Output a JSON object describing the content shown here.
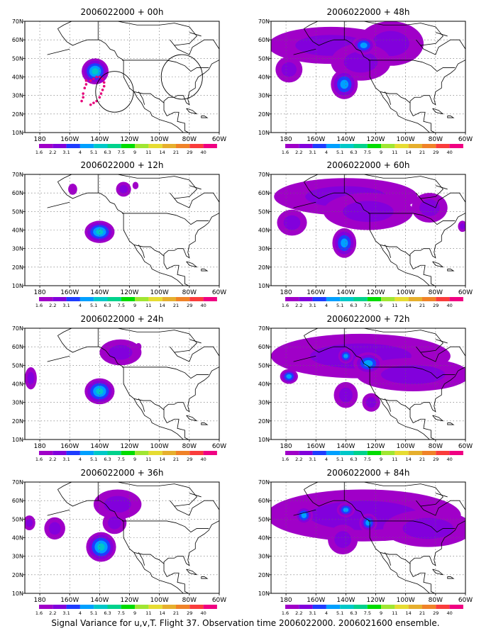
{
  "caption": "Signal Variance for u,v,T. Flight 37. Observation time 2006022000. 2006021600 ensemble.",
  "colors": [
    "#a000c8",
    "#8200dc",
    "#1e3cff",
    "#00a0ff",
    "#00c8c8",
    "#00d28c",
    "#00dc00",
    "#a0e632",
    "#e6dc32",
    "#e6af2d",
    "#f08228",
    "#fa3c3c",
    "#f00082"
  ],
  "chart_data": [
    {
      "type": "heatmap",
      "title": "2006022000 + 00h",
      "xticks": [
        "180",
        "160W",
        "140W",
        "120W",
        "100W",
        "80W",
        "60W"
      ],
      "yticks": [
        "10N",
        "20N",
        "30N",
        "40N",
        "50N",
        "60N",
        "70N"
      ],
      "xlim": [
        -190,
        -60
      ],
      "ylim": [
        10,
        70
      ],
      "legend_levels": [
        "1.6",
        "2.2",
        "3.1",
        "4",
        "5.1",
        "6.3",
        "7.5",
        "9",
        "11",
        "14",
        "21",
        "29",
        "40"
      ],
      "blobs": [
        {
          "lon": -143,
          "lat": 43,
          "rx": 9,
          "ry": 7,
          "level": 4
        }
      ],
      "flight_track": [
        [
          -149,
          38
        ],
        [
          -149,
          36
        ],
        [
          -150,
          34
        ],
        [
          -151,
          31
        ],
        [
          -151,
          29
        ],
        [
          -152,
          27
        ],
        [
          -146,
          25
        ],
        [
          -144,
          26
        ],
        [
          -142,
          27
        ],
        [
          -140,
          29
        ],
        [
          -139,
          31
        ],
        [
          -138,
          33
        ],
        [
          -137,
          35
        ],
        [
          -137,
          37
        ],
        [
          -138,
          39
        ],
        [
          -140,
          40
        ],
        [
          -142,
          40
        ],
        [
          -144,
          39
        ],
        [
          -146,
          38
        ]
      ],
      "circles": [
        {
          "lon": -130,
          "lat": 32,
          "r": 11
        },
        {
          "lon": -85,
          "lat": 40,
          "r": 12
        }
      ]
    },
    {
      "type": "heatmap",
      "title": "2006022000 + 48h",
      "xticks": [
        "180",
        "160W",
        "140W",
        "120W",
        "100W",
        "80W",
        "60W"
      ],
      "yticks": [
        "10N",
        "20N",
        "30N",
        "40N",
        "50N",
        "60N",
        "70N"
      ],
      "xlim": [
        -190,
        -60
      ],
      "ylim": [
        10,
        70
      ],
      "legend_levels": [
        "1.6",
        "2.2",
        "3.1",
        "4",
        "5.1",
        "6.3",
        "7.5",
        "9",
        "11",
        "14",
        "21",
        "29",
        "40"
      ],
      "blobs": [
        {
          "lon": -150,
          "lat": 57,
          "rx": 42,
          "ry": 10,
          "level": 1
        },
        {
          "lon": -110,
          "lat": 58,
          "rx": 22,
          "ry": 12,
          "level": 1
        },
        {
          "lon": -130,
          "lat": 48,
          "rx": 20,
          "ry": 10,
          "level": 1
        },
        {
          "lon": -178,
          "lat": 44,
          "rx": 9,
          "ry": 7,
          "level": 1
        },
        {
          "lon": -141,
          "lat": 36,
          "rx": 9,
          "ry": 8,
          "level": 3
        },
        {
          "lon": -128,
          "lat": 57,
          "rx": 8,
          "ry": 5,
          "level": 3
        }
      ]
    },
    {
      "type": "heatmap",
      "title": "2006022000 + 12h",
      "xticks": [
        "180",
        "160W",
        "140W",
        "120W",
        "100W",
        "80W",
        "60W"
      ],
      "yticks": [
        "10N",
        "20N",
        "30N",
        "40N",
        "50N",
        "60N",
        "70N"
      ],
      "xlim": [
        -190,
        -60
      ],
      "ylim": [
        10,
        70
      ],
      "legend_levels": [
        "1.6",
        "2.2",
        "3.1",
        "4",
        "5.1",
        "6.3",
        "7.5",
        "9",
        "11",
        "14",
        "21",
        "29",
        "40"
      ],
      "blobs": [
        {
          "lon": -140,
          "lat": 39,
          "rx": 10,
          "ry": 6,
          "level": 4
        },
        {
          "lon": -124,
          "lat": 62,
          "rx": 5,
          "ry": 4,
          "level": 1
        },
        {
          "lon": -158,
          "lat": 62,
          "rx": 3,
          "ry": 3,
          "level": 0
        },
        {
          "lon": -116,
          "lat": 64,
          "rx": 2,
          "ry": 2,
          "level": 0
        }
      ]
    },
    {
      "type": "heatmap",
      "title": "2006022000 + 60h",
      "xticks": [
        "180",
        "160W",
        "140W",
        "120W",
        "100W",
        "80W",
        "60W"
      ],
      "yticks": [
        "10N",
        "20N",
        "30N",
        "40N",
        "50N",
        "60N",
        "70N"
      ],
      "xlim": [
        -190,
        -60
      ],
      "ylim": [
        10,
        70
      ],
      "legend_levels": [
        "1.6",
        "2.2",
        "3.1",
        "4",
        "5.1",
        "6.3",
        "7.5",
        "9",
        "11",
        "14",
        "21",
        "29",
        "40"
      ],
      "blobs": [
        {
          "lon": -140,
          "lat": 58,
          "rx": 48,
          "ry": 10,
          "level": 1
        },
        {
          "lon": -125,
          "lat": 50,
          "rx": 30,
          "ry": 10,
          "level": 1
        },
        {
          "lon": -176,
          "lat": 44,
          "rx": 10,
          "ry": 7,
          "level": 1
        },
        {
          "lon": -141,
          "lat": 33,
          "rx": 8,
          "ry": 8,
          "level": 3
        },
        {
          "lon": -84,
          "lat": 52,
          "rx": 12,
          "ry": 8,
          "level": 1
        },
        {
          "lon": -62,
          "lat": 42,
          "rx": 3,
          "ry": 3,
          "level": 1
        }
      ]
    },
    {
      "type": "heatmap",
      "title": "2006022000 + 24h",
      "xticks": [
        "180",
        "160W",
        "140W",
        "120W",
        "100W",
        "80W",
        "60W"
      ],
      "yticks": [
        "10N",
        "20N",
        "30N",
        "40N",
        "50N",
        "60N",
        "70N"
      ],
      "xlim": [
        -190,
        -60
      ],
      "ylim": [
        10,
        70
      ],
      "legend_levels": [
        "1.6",
        "2.2",
        "3.1",
        "4",
        "5.1",
        "6.3",
        "7.5",
        "9",
        "11",
        "14",
        "21",
        "29",
        "40"
      ],
      "blobs": [
        {
          "lon": -140,
          "lat": 36,
          "rx": 10,
          "ry": 7,
          "level": 4
        },
        {
          "lon": -126,
          "lat": 57,
          "rx": 14,
          "ry": 7,
          "level": 1
        },
        {
          "lon": -186,
          "lat": 43,
          "rx": 4,
          "ry": 6,
          "level": 1
        },
        {
          "lon": -114,
          "lat": 60,
          "rx": 2,
          "ry": 2,
          "level": 0
        }
      ]
    },
    {
      "type": "heatmap",
      "title": "2006022000 + 72h",
      "xticks": [
        "180",
        "160W",
        "140W",
        "120W",
        "100W",
        "80W",
        "60W"
      ],
      "yticks": [
        "10N",
        "20N",
        "30N",
        "40N",
        "50N",
        "60N",
        "70N"
      ],
      "xlim": [
        -190,
        -60
      ],
      "ylim": [
        10,
        70
      ],
      "legend_levels": [
        "1.6",
        "2.2",
        "3.1",
        "4",
        "5.1",
        "6.3",
        "7.5",
        "9",
        "11",
        "14",
        "21",
        "29",
        "40"
      ],
      "blobs": [
        {
          "lon": -130,
          "lat": 55,
          "rx": 60,
          "ry": 12,
          "level": 1
        },
        {
          "lon": -95,
          "lat": 45,
          "rx": 38,
          "ry": 9,
          "level": 1
        },
        {
          "lon": -140,
          "lat": 34,
          "rx": 8,
          "ry": 7,
          "level": 1
        },
        {
          "lon": -123,
          "lat": 30,
          "rx": 6,
          "ry": 5,
          "level": 1
        },
        {
          "lon": -125,
          "lat": 51,
          "rx": 10,
          "ry": 6,
          "level": 3
        },
        {
          "lon": -140,
          "lat": 55,
          "rx": 5,
          "ry": 4,
          "level": 3
        },
        {
          "lon": -178,
          "lat": 44,
          "rx": 6,
          "ry": 4,
          "level": 3
        }
      ]
    },
    {
      "type": "heatmap",
      "title": "2006022000 + 36h",
      "xticks": [
        "180",
        "160W",
        "140W",
        "120W",
        "100W",
        "80W",
        "60W"
      ],
      "yticks": [
        "10N",
        "20N",
        "30N",
        "40N",
        "50N",
        "60N",
        "70N"
      ],
      "xlim": [
        -190,
        -60
      ],
      "ylim": [
        10,
        70
      ],
      "legend_levels": [
        "1.6",
        "2.2",
        "3.1",
        "4",
        "5.1",
        "6.3",
        "7.5",
        "9",
        "11",
        "14",
        "21",
        "29",
        "40"
      ],
      "blobs": [
        {
          "lon": -139,
          "lat": 35,
          "rx": 10,
          "ry": 8,
          "level": 4
        },
        {
          "lon": -128,
          "lat": 58,
          "rx": 16,
          "ry": 8,
          "level": 1
        },
        {
          "lon": -170,
          "lat": 45,
          "rx": 7,
          "ry": 6,
          "level": 1
        },
        {
          "lon": -187,
          "lat": 48,
          "rx": 4,
          "ry": 4,
          "level": 1
        },
        {
          "lon": -130,
          "lat": 48,
          "rx": 8,
          "ry": 6,
          "level": 1
        }
      ]
    },
    {
      "type": "heatmap",
      "title": "2006022000 + 84h",
      "xticks": [
        "180",
        "160W",
        "140W",
        "120W",
        "100W",
        "80W",
        "60W"
      ],
      "yticks": [
        "10N",
        "20N",
        "30N",
        "40N",
        "50N",
        "60N",
        "70N"
      ],
      "xlim": [
        -190,
        -60
      ],
      "ylim": [
        10,
        70
      ],
      "legend_levels": [
        "1.6",
        "2.2",
        "3.1",
        "4",
        "5.1",
        "6.3",
        "7.5",
        "9",
        "11",
        "14",
        "21",
        "29",
        "40"
      ],
      "blobs": [
        {
          "lon": -128,
          "lat": 52,
          "rx": 65,
          "ry": 14,
          "level": 1
        },
        {
          "lon": -85,
          "lat": 45,
          "rx": 30,
          "ry": 10,
          "level": 1
        },
        {
          "lon": -142,
          "lat": 39,
          "rx": 10,
          "ry": 8,
          "level": 1
        },
        {
          "lon": -168,
          "lat": 52,
          "rx": 6,
          "ry": 5,
          "level": 3
        },
        {
          "lon": -140,
          "lat": 55,
          "rx": 6,
          "ry": 4,
          "level": 3
        },
        {
          "lon": -125,
          "lat": 48,
          "rx": 6,
          "ry": 5,
          "level": 3
        }
      ]
    }
  ]
}
